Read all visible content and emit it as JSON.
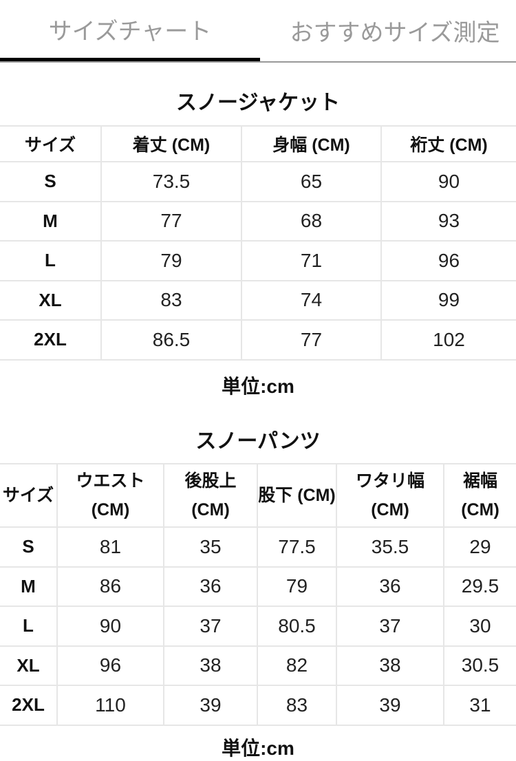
{
  "tabs": [
    {
      "label": "サイズチャート",
      "active": true
    },
    {
      "label": "おすすめサイズ測定",
      "active": false
    }
  ],
  "jacket": {
    "title": "スノージャケット",
    "headers": [
      "サイズ",
      "着丈 (CM)",
      "身幅 (CM)",
      "裄丈 (CM)"
    ],
    "rows": [
      [
        "S",
        "73.5",
        "65",
        "90"
      ],
      [
        "M",
        "77",
        "68",
        "93"
      ],
      [
        "L",
        "79",
        "71",
        "96"
      ],
      [
        "XL",
        "83",
        "74",
        "99"
      ],
      [
        "2XL",
        "86.5",
        "77",
        "102"
      ]
    ],
    "unit": "単位:cm"
  },
  "pants": {
    "title": "スノーパンツ",
    "headers": [
      "サイズ",
      "ウエスト (CM)",
      "後股上 (CM)",
      "股下 (CM)",
      "ワタリ幅 (CM)",
      "裾幅 (CM)"
    ],
    "rows": [
      [
        "S",
        "81",
        "35",
        "77.5",
        "35.5",
        "29"
      ],
      [
        "M",
        "86",
        "36",
        "79",
        "36",
        "29.5"
      ],
      [
        "L",
        "90",
        "37",
        "80.5",
        "37",
        "30"
      ],
      [
        "XL",
        "96",
        "38",
        "82",
        "38",
        "30.5"
      ],
      [
        "2XL",
        "110",
        "39",
        "83",
        "39",
        "31"
      ]
    ],
    "unit": "単位:cm"
  }
}
